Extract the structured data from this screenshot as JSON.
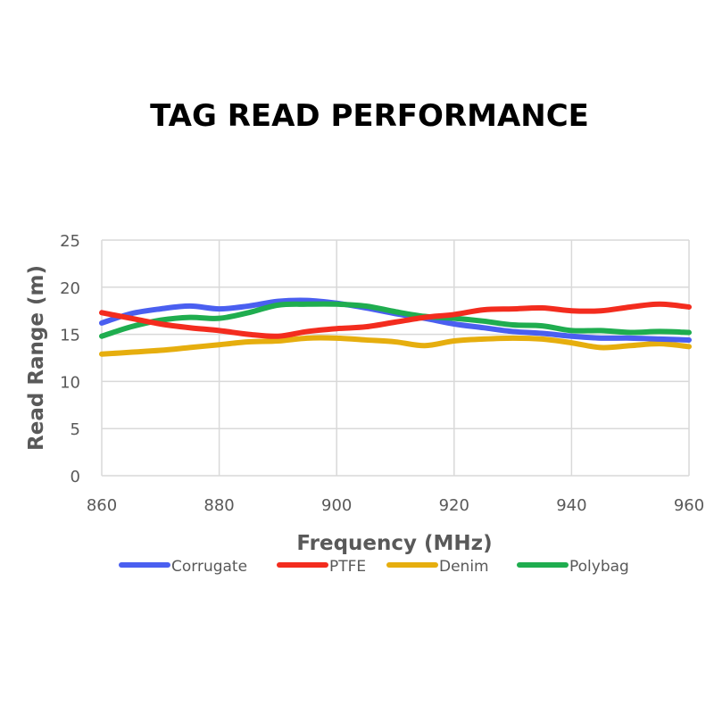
{
  "chart_data": {
    "type": "line",
    "title": "TAG READ PERFORMANCE",
    "xlabel": "Frequency (MHz)",
    "ylabel": "Read Range (m)",
    "xlim": [
      860,
      960
    ],
    "ylim": [
      0,
      25
    ],
    "x_ticks": [
      "860",
      "880",
      "900",
      "920",
      "940",
      "960"
    ],
    "y_ticks": [
      "0",
      "5",
      "10",
      "15",
      "20",
      "25"
    ],
    "grid": "vertical and horizontal",
    "legend_position": "bottom",
    "x": [
      860,
      865,
      870,
      875,
      880,
      885,
      890,
      895,
      900,
      905,
      910,
      915,
      920,
      925,
      930,
      935,
      940,
      945,
      950,
      955,
      960
    ],
    "series": [
      {
        "name": "Corrugate",
        "color": "#4a5ff0",
        "values": [
          16.2,
          17.2,
          17.7,
          18.0,
          17.7,
          18.0,
          18.5,
          18.6,
          18.3,
          17.8,
          17.2,
          16.7,
          16.1,
          15.7,
          15.3,
          15.1,
          14.8,
          14.6,
          14.6,
          14.5,
          14.4
        ]
      },
      {
        "name": "PTFE",
        "color": "#f32c1e",
        "values": [
          17.3,
          16.7,
          16.1,
          15.7,
          15.4,
          15.0,
          14.8,
          15.3,
          15.6,
          15.8,
          16.3,
          16.8,
          17.1,
          17.6,
          17.7,
          17.8,
          17.5,
          17.5,
          17.9,
          18.2,
          17.9
        ]
      },
      {
        "name": "Denim",
        "color": "#e6ae0e",
        "values": [
          12.9,
          13.1,
          13.3,
          13.6,
          13.9,
          14.2,
          14.3,
          14.6,
          14.6,
          14.4,
          14.2,
          13.8,
          14.3,
          14.5,
          14.6,
          14.5,
          14.1,
          13.6,
          13.8,
          14.0,
          13.7
        ]
      },
      {
        "name": "Polybag",
        "color": "#1fad4f",
        "values": [
          14.8,
          15.8,
          16.5,
          16.8,
          16.7,
          17.3,
          18.1,
          18.2,
          18.2,
          18.0,
          17.4,
          16.9,
          16.7,
          16.4,
          16.0,
          15.9,
          15.4,
          15.4,
          15.2,
          15.3,
          15.2
        ]
      }
    ]
  }
}
